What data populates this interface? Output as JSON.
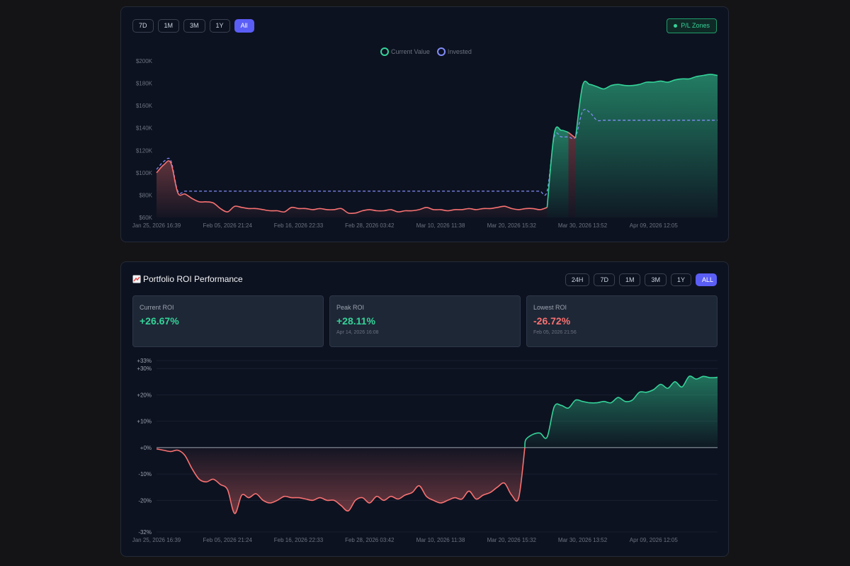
{
  "value_card": {
    "ranges": [
      "7D",
      "1M",
      "3M",
      "1Y",
      "All"
    ],
    "active_range": "All",
    "pl_zones_label": "P/L Zones",
    "legend": [
      {
        "label": "Current Value",
        "color": "#34d399"
      },
      {
        "label": "Invested",
        "color": "#818cf8"
      }
    ]
  },
  "roi_card": {
    "icon": "chart-icon",
    "title": "Portfolio ROI Performance",
    "ranges": [
      "24H",
      "7D",
      "1M",
      "3M",
      "1Y",
      "ALL"
    ],
    "active_range": "ALL",
    "stats": {
      "current": {
        "label": "Current ROI",
        "value": "+26.67%"
      },
      "peak": {
        "label": "Peak ROI",
        "value": "+28.11%",
        "date": "Apr 14, 2026 16:08"
      },
      "lowest": {
        "label": "Lowest ROI",
        "value": "-26.72%",
        "date": "Feb 05, 2026 21:56"
      }
    }
  },
  "colors": {
    "profit": "#34d399",
    "loss": "#f87171",
    "invested": "#818cf8",
    "accent": "#5b5ef6"
  },
  "chart_data": [
    {
      "type": "line",
      "legend": [
        "Current Value",
        "Invested"
      ],
      "legend_position": "top-center",
      "x_tick_labels": [
        "Jan 25, 2026 16:39",
        "Feb 05, 2026 21:24",
        "Feb 16, 2026 22:33",
        "Feb 28, 2026 03:42",
        "Mar 10, 2026 11:38",
        "Mar 20, 2026 15:32",
        "Mar 30, 2026 13:52",
        "Apr 09, 2026 12:05"
      ],
      "y_tick_labels": [
        "$200K",
        "$180K",
        "$160K",
        "$140K",
        "$120K",
        "$100K",
        "$80K",
        "$60K"
      ],
      "ylim": [
        60000,
        200000
      ],
      "x_range": [
        0,
        79
      ],
      "series": [
        {
          "name": "Current Value",
          "x": [
            0,
            1,
            2,
            3,
            4,
            5,
            6,
            7,
            8,
            9,
            10,
            11,
            12,
            13,
            14,
            15,
            16,
            17,
            18,
            19,
            20,
            21,
            22,
            23,
            24,
            25,
            26,
            27,
            28,
            29,
            30,
            31,
            32,
            33,
            34,
            35,
            36,
            37,
            38,
            39,
            40,
            41,
            42,
            43,
            44,
            45,
            46,
            47,
            48,
            49,
            50,
            51,
            52,
            53,
            54,
            55,
            56,
            57,
            58,
            59,
            60,
            61,
            62,
            63,
            64,
            65,
            66,
            67,
            68,
            69,
            70,
            71,
            72,
            73,
            74,
            75,
            76,
            77,
            78,
            79
          ],
          "values": [
            100000,
            107000,
            109000,
            82000,
            81000,
            77000,
            74000,
            74000,
            73000,
            68000,
            65000,
            70000,
            69000,
            68000,
            68000,
            67000,
            66000,
            66000,
            65000,
            69000,
            68000,
            68000,
            67000,
            68000,
            67000,
            67000,
            68000,
            64000,
            64000,
            66000,
            67000,
            66000,
            66000,
            67000,
            65000,
            66000,
            66000,
            67000,
            69000,
            67000,
            67000,
            66000,
            67000,
            67000,
            68000,
            67000,
            68000,
            68000,
            69000,
            70000,
            68000,
            67000,
            68000,
            68000,
            67000,
            69000,
            135000,
            138000,
            136000,
            131000,
            178000,
            179000,
            177000,
            175000,
            178000,
            179000,
            178000,
            178000,
            179000,
            181000,
            181000,
            182000,
            181000,
            183000,
            184000,
            184000,
            186000,
            187000,
            188000,
            187000
          ]
        },
        {
          "name": "Invested",
          "x": [
            0,
            1,
            2,
            3,
            4,
            5,
            6,
            7,
            8,
            9,
            10,
            11,
            12,
            13,
            14,
            15,
            16,
            17,
            18,
            19,
            20,
            21,
            22,
            23,
            24,
            25,
            26,
            27,
            28,
            29,
            30,
            31,
            32,
            33,
            34,
            35,
            36,
            37,
            38,
            39,
            40,
            41,
            42,
            43,
            44,
            45,
            46,
            47,
            48,
            49,
            50,
            51,
            52,
            53,
            54,
            55,
            56,
            57,
            58,
            59,
            60,
            61,
            62,
            63,
            64,
            65,
            66,
            67,
            68,
            69,
            70,
            71,
            72,
            73,
            74,
            75,
            76,
            77,
            78,
            79
          ],
          "values": [
            103000,
            110000,
            111000,
            83500,
            83500,
            83500,
            83500,
            83500,
            83500,
            83500,
            83500,
            83500,
            83500,
            83500,
            83500,
            83500,
            83500,
            83500,
            83500,
            83500,
            83500,
            83500,
            83500,
            83500,
            83500,
            83500,
            83500,
            83500,
            83500,
            83500,
            83500,
            83500,
            83500,
            83500,
            83500,
            83500,
            83500,
            83500,
            83500,
            83500,
            83500,
            83500,
            83500,
            83500,
            83500,
            83500,
            83500,
            83500,
            83500,
            83500,
            83500,
            83500,
            83500,
            83500,
            83500,
            83500,
            132000,
            132000,
            132000,
            132000,
            155000,
            154000,
            147000,
            147000,
            147000,
            147000,
            147000,
            147000,
            147000,
            147000,
            147000,
            147000,
            147000,
            147000,
            147000,
            147000,
            147000,
            147000,
            147000,
            147000
          ]
        }
      ]
    },
    {
      "type": "area",
      "x_tick_labels": [
        "Jan 25, 2026 16:39",
        "Feb 05, 2026 21:24",
        "Feb 16, 2026 22:33",
        "Feb 28, 2026 03:42",
        "Mar 10, 2026 11:38",
        "Mar 20, 2026 15:32",
        "Mar 30, 2026 13:52",
        "Apr 09, 2026 12:05"
      ],
      "y_tick_labels": [
        "+33%",
        "+30%",
        "+20%",
        "+10%",
        "+0%",
        "-10%",
        "-20%",
        "-32%"
      ],
      "y_ticks": [
        33,
        30,
        20,
        10,
        0,
        -10,
        -20,
        -32
      ],
      "ylim": [
        -32,
        33
      ],
      "x_range": [
        0,
        79
      ],
      "series": [
        {
          "name": "ROI",
          "x": [
            0,
            1,
            2,
            3,
            4,
            5,
            6,
            7,
            8,
            9,
            10,
            11,
            12,
            13,
            14,
            15,
            16,
            17,
            18,
            19,
            20,
            21,
            22,
            23,
            24,
            25,
            26,
            27,
            28,
            29,
            30,
            31,
            32,
            33,
            34,
            35,
            36,
            37,
            38,
            39,
            40,
            41,
            42,
            43,
            44,
            45,
            46,
            47,
            48,
            49,
            50,
            51,
            52,
            53,
            54,
            55,
            56,
            57,
            58,
            59,
            60,
            61,
            62,
            63,
            64,
            65,
            66,
            67,
            68,
            69,
            70,
            71,
            72,
            73,
            74,
            75,
            76,
            77,
            78,
            79
          ],
          "values": [
            -0.5,
            -1,
            -1.5,
            -1,
            -3,
            -8,
            -12,
            -13,
            -12,
            -14,
            -16,
            -25,
            -18,
            -19,
            -17.5,
            -20,
            -21,
            -20,
            -18.5,
            -19,
            -19,
            -19.5,
            -20,
            -19,
            -20,
            -20,
            -22,
            -24,
            -20,
            -19,
            -21,
            -18.5,
            -20,
            -18.5,
            -19.5,
            -18,
            -17,
            -14.5,
            -18.5,
            -20,
            -21,
            -20,
            -19,
            -19.5,
            -16.5,
            -19.5,
            -18,
            -17,
            -15,
            -13.5,
            -18,
            -19,
            3,
            5,
            5.5,
            4,
            15.5,
            16,
            15,
            18,
            17.5,
            17,
            17,
            17.5,
            17,
            19,
            17.5,
            18,
            21,
            21,
            22,
            24,
            22.5,
            25,
            23,
            27,
            26,
            27,
            26.5,
            26.67
          ]
        }
      ]
    }
  ]
}
